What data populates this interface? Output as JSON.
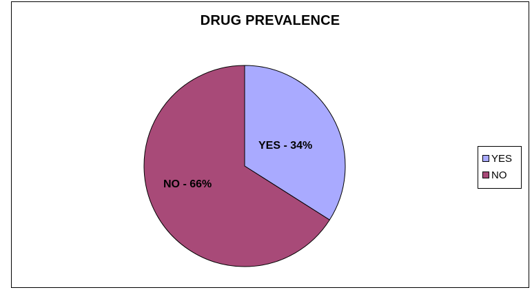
{
  "chart_data": {
    "type": "pie",
    "title": "DRUG PREVALENCE",
    "categories": [
      "YES",
      "NO"
    ],
    "values": [
      34,
      66
    ],
    "unit": "%",
    "data_labels": [
      "YES - 34%",
      "NO - 66%"
    ],
    "colors": [
      "#a9aaff",
      "#a84a78"
    ],
    "legend": {
      "position": "right",
      "entries": [
        "YES",
        "NO"
      ]
    }
  }
}
